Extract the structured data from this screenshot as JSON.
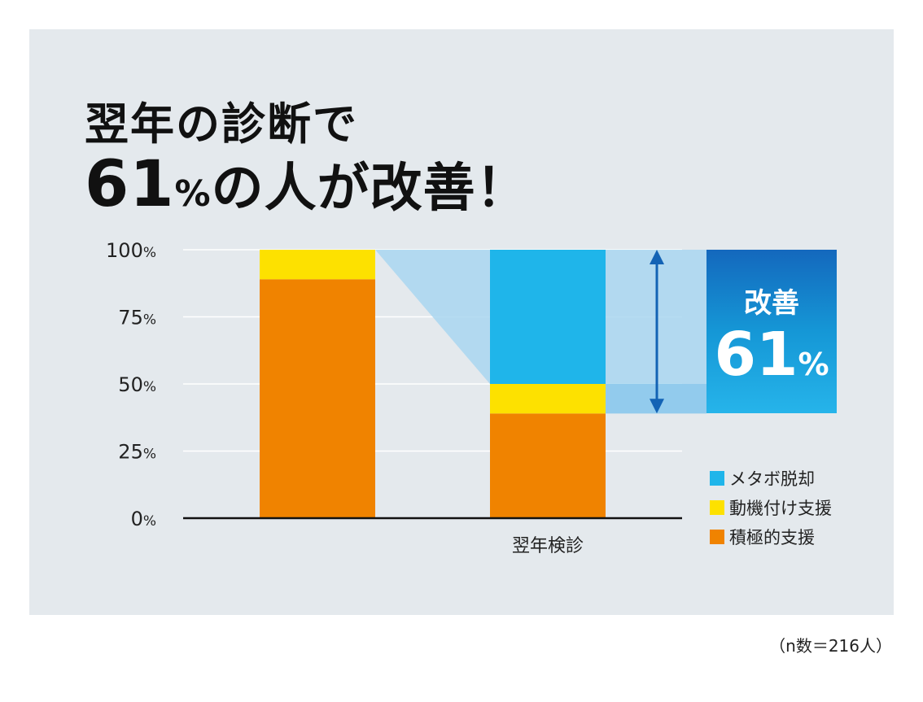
{
  "headline": {
    "line1": "翌年の診断で",
    "line2_number": "61",
    "line2_pct": "%",
    "line2_rest_a": "の人が",
    "line2_rest_b": "改善！"
  },
  "chart_data": {
    "type": "bar",
    "stacked": true,
    "categories": [
      "",
      "翌年検診"
    ],
    "series": [
      {
        "name": "積極的支援",
        "color": "#f08300",
        "values": [
          89,
          39
        ]
      },
      {
        "name": "動機付け支援",
        "color": "#fde100",
        "values": [
          11,
          11
        ]
      },
      {
        "name": "メタボ脱却",
        "color": "#1fb5ea",
        "values": [
          0,
          50
        ]
      }
    ],
    "ylim": [
      0,
      100
    ],
    "yticks": [
      {
        "value": 0,
        "num": "0",
        "unit": "%"
      },
      {
        "value": 25,
        "num": "25",
        "unit": "%"
      },
      {
        "value": 50,
        "num": "50",
        "unit": "%"
      },
      {
        "value": 75,
        "num": "75",
        "unit": "%"
      },
      {
        "value": 100,
        "num": "100",
        "unit": "%"
      }
    ],
    "legend_order": [
      "メタボ脱却",
      "動機付け支援",
      "積極的支援"
    ],
    "legend_position": "bottom-right",
    "grid": true,
    "improvement_range": [
      39,
      100
    ]
  },
  "callout": {
    "label": "改善",
    "value": "61",
    "unit": "%"
  },
  "note": "（n数＝216人）",
  "colors": {
    "background": "#e4e9ed",
    "highlight": "#a9d6f0",
    "arrow": "#1363b5"
  }
}
